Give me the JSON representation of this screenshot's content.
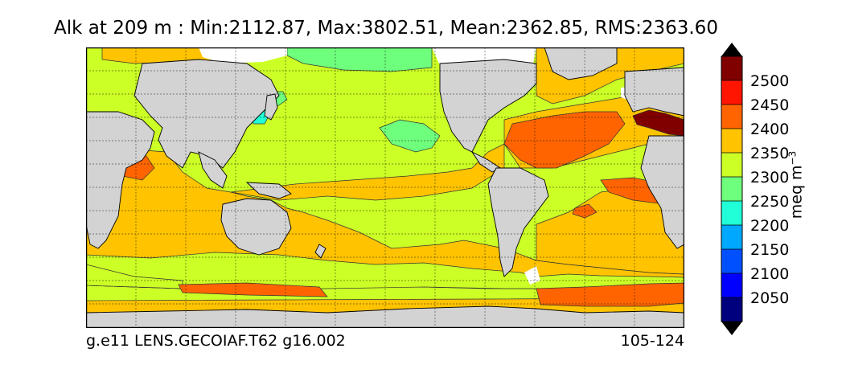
{
  "title": "Alk at 209 m : Min:2112.87, Max:3802.51, Mean:2362.85, RMS:2363.60",
  "footer": {
    "left": "g.e11 LENS.GECOIAF.T62 g16.002",
    "right": "105-124"
  },
  "colorbar": {
    "label_main": "meq m",
    "label_exp": "−3",
    "bands": [
      {
        "low": 2000,
        "high": 2050,
        "color": "#00007f"
      },
      {
        "low": 2050,
        "high": 2100,
        "color": "#0000ff"
      },
      {
        "low": 2100,
        "high": 2150,
        "color": "#0050ff"
      },
      {
        "low": 2150,
        "high": 2200,
        "color": "#00a8ff"
      },
      {
        "low": 2200,
        "high": 2250,
        "color": "#20ffd8"
      },
      {
        "low": 2250,
        "high": 2300,
        "color": "#6eff7c"
      },
      {
        "low": 2300,
        "high": 2350,
        "color": "#ccff26"
      },
      {
        "low": 2350,
        "high": 2400,
        "color": "#ffc300"
      },
      {
        "low": 2400,
        "high": 2450,
        "color": "#ff6400"
      },
      {
        "low": 2450,
        "high": 2500,
        "color": "#ff1500"
      },
      {
        "low": 2500,
        "high": 2550,
        "color": "#800000"
      }
    ],
    "ticks": [
      "2050",
      "2100",
      "2150",
      "2200",
      "2250",
      "2300",
      "2350",
      "2400",
      "2450",
      "2500"
    ],
    "extend_low_color": "#000000",
    "extend_high_color": "#000000"
  },
  "colors": {
    "land": "#d3d3d3",
    "sea_ice": "#ffffff",
    "contour_line": "#333333",
    "grid_line": "#000000"
  }
}
